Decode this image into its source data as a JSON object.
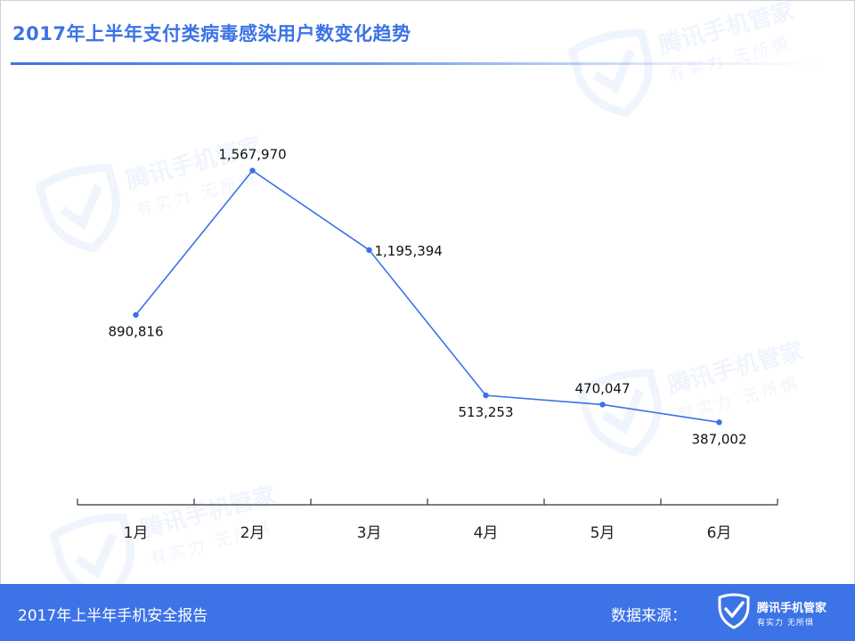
{
  "header": {
    "title": "2017年上半年支付类病毒感染用户数变化趋势"
  },
  "footer": {
    "report_name": "2017年上半年手机安全报告",
    "source_label": "数据来源：",
    "logo_name": "腾讯手机管家",
    "logo_slogan": "有实力 无所惧"
  },
  "watermark": {
    "name": "腾讯手机管家",
    "slogan": "有实力 无所惧"
  },
  "colors": {
    "accent": "#3c73e6",
    "line": "#3a72e8",
    "axis": "#333333",
    "footer_bg": "#3c73e6"
  },
  "chart_data": {
    "type": "line",
    "categories": [
      "1月",
      "2月",
      "3月",
      "4月",
      "5月",
      "6月"
    ],
    "values": [
      890816,
      1567970,
      1195394,
      513253,
      470047,
      387002
    ],
    "data_labels": [
      "890,816",
      "1,567,970",
      "1,195,394",
      "513,253",
      "470,047",
      "387,002"
    ],
    "label_position": [
      "below",
      "above",
      "right",
      "below",
      "above",
      "below"
    ],
    "ylim": [
      0,
      1700000
    ],
    "title": "2017年上半年支付类病毒感染用户数变化趋势",
    "xlabel": "",
    "ylabel": "",
    "grid": false,
    "legend": "none"
  }
}
